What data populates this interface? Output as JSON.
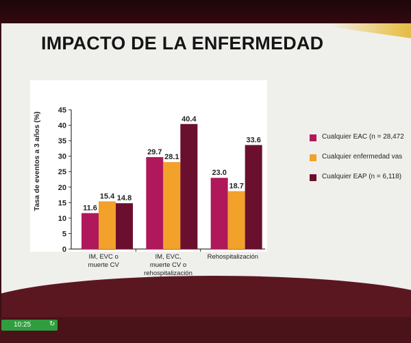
{
  "slide": {
    "title": "IMPACTO DE LA ENFERMEDAD"
  },
  "status": {
    "time": "10:25",
    "sync_icon": "refresh-icon"
  },
  "colors": {
    "eac": "#b0185c",
    "any_vascular": "#f2a12a",
    "eap": "#6b0f2e",
    "green_badge": "#2e9e3e"
  },
  "chart_data": {
    "type": "bar",
    "ylabel": "Tasa de eventos a 3 años (%)",
    "ylim": [
      0,
      45
    ],
    "yticks": [
      "0",
      "5",
      "10",
      "15",
      "20",
      "25",
      "30",
      "35",
      "40",
      "45"
    ],
    "categories": [
      [
        "IM, EVC o",
        "muerte CV"
      ],
      [
        "IM, EVC,",
        "muerte CV o",
        "rehospitalización"
      ],
      [
        "Rehospitalización"
      ]
    ],
    "series": [
      {
        "name": "Cualquier EAC (n = 28,472",
        "values": [
          11.6,
          29.7,
          23.0
        ],
        "labels": [
          "11.6",
          "29.7",
          "23.0"
        ]
      },
      {
        "name": "Cualquier enfermedad vas",
        "values": [
          15.4,
          28.1,
          18.7
        ],
        "labels": [
          "15.4",
          "28.1",
          "18.7"
        ]
      },
      {
        "name": "Cualquier EAP (n = 6,118)",
        "values": [
          14.8,
          40.4,
          33.6
        ],
        "labels": [
          "14.8",
          "40.4",
          "33.6"
        ]
      }
    ],
    "legend_position": "right",
    "grid": false
  }
}
